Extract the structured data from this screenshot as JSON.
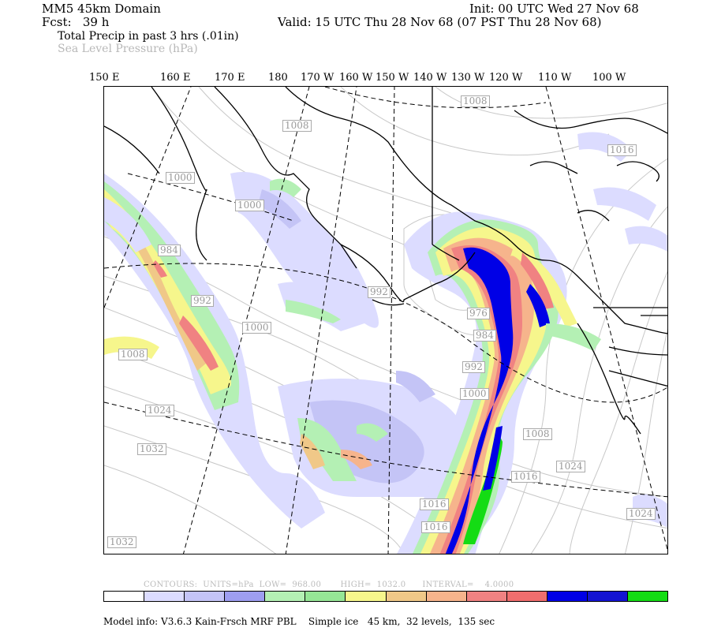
{
  "header": {
    "domain": "MM5 45km Domain",
    "forecast": "Fcst:   39 h",
    "init": "Init: 00 UTC Wed 27 Nov 68",
    "valid": "Valid: 15 UTC Thu 28 Nov 68 (07 PST Thu 28 Nov 68)",
    "field1": "Total Precip in past 3 hrs (.01in)",
    "field2": "Sea Level Pressure (hPa)"
  },
  "longitudes": [
    "150 E",
    "160 E",
    "170 E",
    "180",
    "170 W",
    "160 W",
    "150 W",
    "140 W",
    "130 W",
    "120 W",
    "110 W",
    "100 W"
  ],
  "isobars": [
    "1008",
    "1008",
    "1000",
    "1000",
    "984",
    "992",
    "1000",
    "1008",
    "992",
    "976",
    "984",
    "992",
    "1000",
    "1008",
    "1016",
    "1024",
    "1032",
    "1024",
    "1016",
    "1016",
    "1032",
    "1024",
    "1016"
  ],
  "contours": {
    "text": "CONTOURS:  UNITS=hPa  LOW=  968.00       HIGH=  1032.0      INTERVAL=    4.0000"
  },
  "colorbar": [
    "#ffffff",
    "#dcdcff",
    "#c4c4f6",
    "#9e9ef0",
    "#b4f0b4",
    "#96e696",
    "#f6f68c",
    "#f0c888",
    "#f6b48c",
    "#f08282",
    "#f06e6e",
    "#0000e6",
    "#1414d2",
    "#14dc14"
  ],
  "model_info": "Model info: V3.6.3 Kain-Frsch MRF PBL    Simple ice   45 km,  32 levels,  135 sec"
}
